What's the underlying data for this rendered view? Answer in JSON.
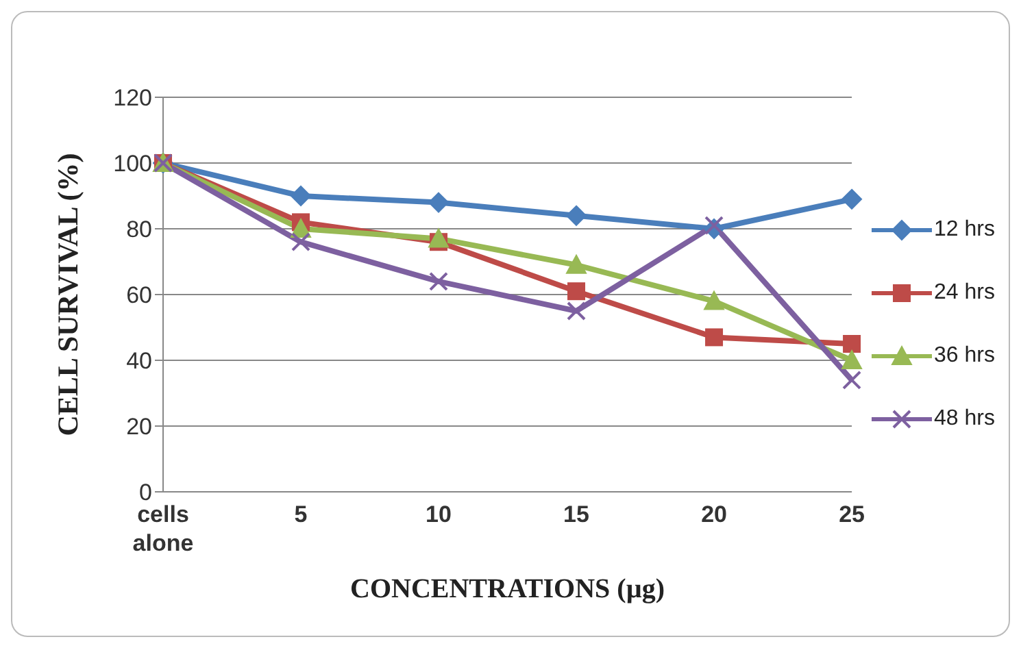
{
  "chart_data": {
    "type": "line",
    "xlabel": "CONCENTRATIONS (µg)",
    "ylabel": "CELL SURVIVAL (%)",
    "categories": [
      "cells alone",
      "5",
      "10",
      "15",
      "20",
      "25"
    ],
    "series": [
      {
        "name": "12 hrs",
        "color": "#4a7ebb",
        "marker": "diamond",
        "values": [
          100,
          90,
          88,
          84,
          80,
          89
        ]
      },
      {
        "name": "24 hrs",
        "color": "#be4b48",
        "marker": "square",
        "values": [
          100,
          82,
          76,
          61,
          47,
          45
        ]
      },
      {
        "name": "36 hrs",
        "color": "#98b954",
        "marker": "triangle",
        "values": [
          100,
          80,
          77,
          69,
          58,
          40
        ]
      },
      {
        "name": "48 hrs",
        "color": "#7d60a0",
        "marker": "cross",
        "values": [
          100,
          76,
          64,
          55,
          81,
          34
        ]
      }
    ],
    "ylim": [
      0,
      120
    ],
    "yticks": [
      0,
      20,
      40,
      60,
      80,
      100,
      120
    ],
    "grid": "y",
    "legend": "right",
    "line_style": "solid"
  }
}
